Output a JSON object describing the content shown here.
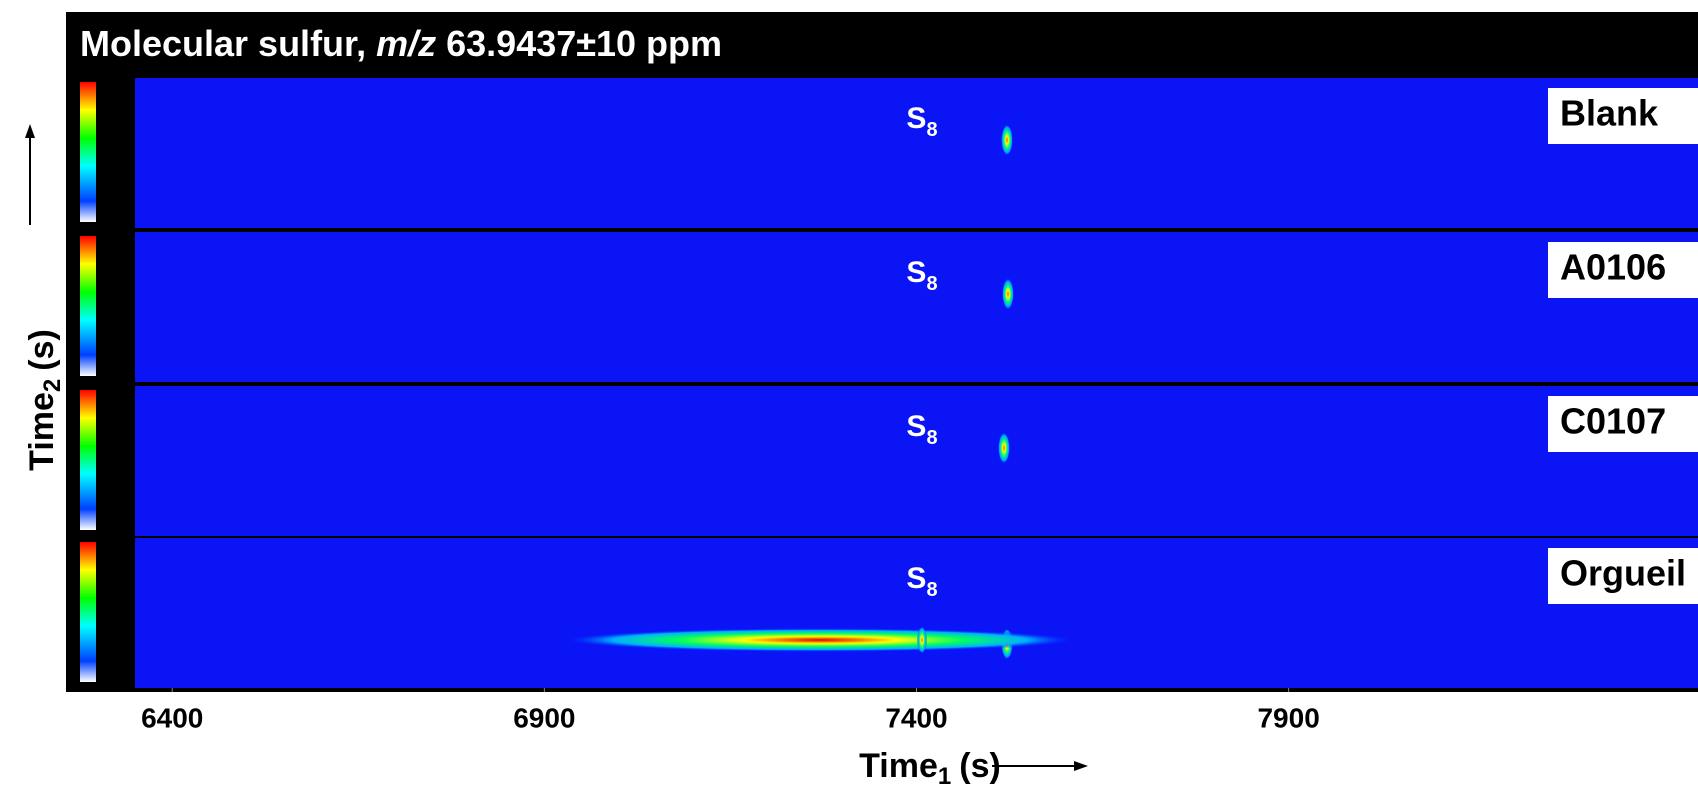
{
  "chart_data": {
    "type": "heatmap",
    "title": [
      "Molecular sulfur,",
      "m/z",
      "63.9437±10 ppm"
    ],
    "x_label": {
      "text": "Time",
      "subscript": "1",
      "unit": "(s)"
    },
    "y_label": {
      "text": "Time",
      "subscript": "2",
      "unit": "(s)"
    },
    "panels": [
      {
        "label": "Blank"
      },
      {
        "label": "A0106"
      },
      {
        "label": "C0107"
      },
      {
        "label": "Orgueil"
      }
    ],
    "peak_label": {
      "text": "S",
      "subscript": "8"
    },
    "xlim": [
      6350,
      8450
    ],
    "xticks": [
      6400,
      6900,
      7400,
      7900
    ]
  }
}
